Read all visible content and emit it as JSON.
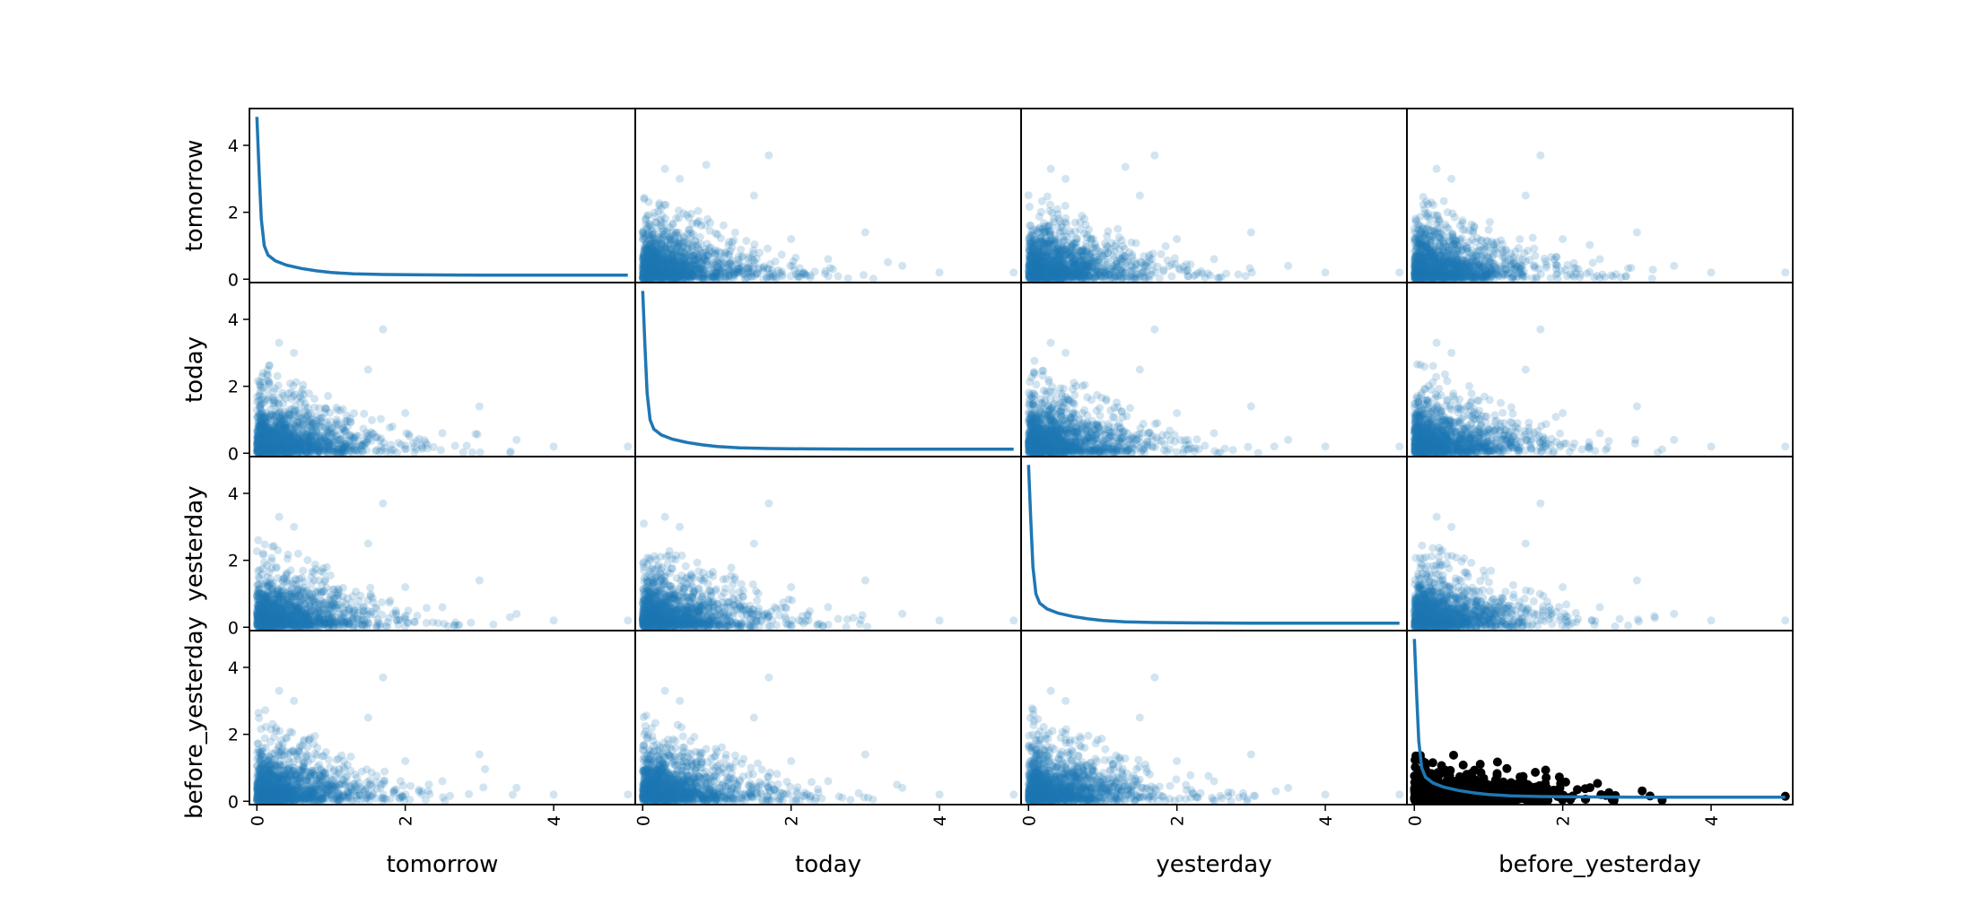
{
  "chart_data": {
    "type": "scatter",
    "kind": "scatter_matrix",
    "diagonal": "kde",
    "variables": [
      "tomorrow",
      "today",
      "yesterday",
      "before_yesterday"
    ],
    "axis_range": [
      -0.1,
      5.1
    ],
    "ticks": [
      0,
      2,
      4
    ],
    "tick_labels": [
      "0",
      "2",
      "4"
    ],
    "point_color": "#1f77b4",
    "point_alpha": 0.2,
    "highlight_color": "#000000",
    "grid": false,
    "legend": "none",
    "kde_curve": [
      [
        0.0,
        4.85
      ],
      [
        0.03,
        3.2
      ],
      [
        0.06,
        1.8
      ],
      [
        0.1,
        1.0
      ],
      [
        0.15,
        0.72
      ],
      [
        0.25,
        0.55
      ],
      [
        0.4,
        0.42
      ],
      [
        0.6,
        0.32
      ],
      [
        0.8,
        0.25
      ],
      [
        1.0,
        0.2
      ],
      [
        1.3,
        0.16
      ],
      [
        1.7,
        0.14
      ],
      [
        2.2,
        0.13
      ],
      [
        3.0,
        0.12
      ],
      [
        4.0,
        0.12
      ],
      [
        5.0,
        0.12
      ]
    ],
    "sample_points": [
      {
        "x": 0.3,
        "y": 3.3
      },
      {
        "x": 0.5,
        "y": 3.0
      },
      {
        "x": 1.5,
        "y": 2.5
      },
      {
        "x": 1.7,
        "y": 3.7
      },
      {
        "x": 2.0,
        "y": 1.2
      },
      {
        "x": 2.5,
        "y": 0.6
      },
      {
        "x": 3.0,
        "y": 1.4
      },
      {
        "x": 3.5,
        "y": 0.4
      },
      {
        "x": 4.0,
        "y": 0.2
      },
      {
        "x": 5.0,
        "y": 0.2
      }
    ]
  }
}
